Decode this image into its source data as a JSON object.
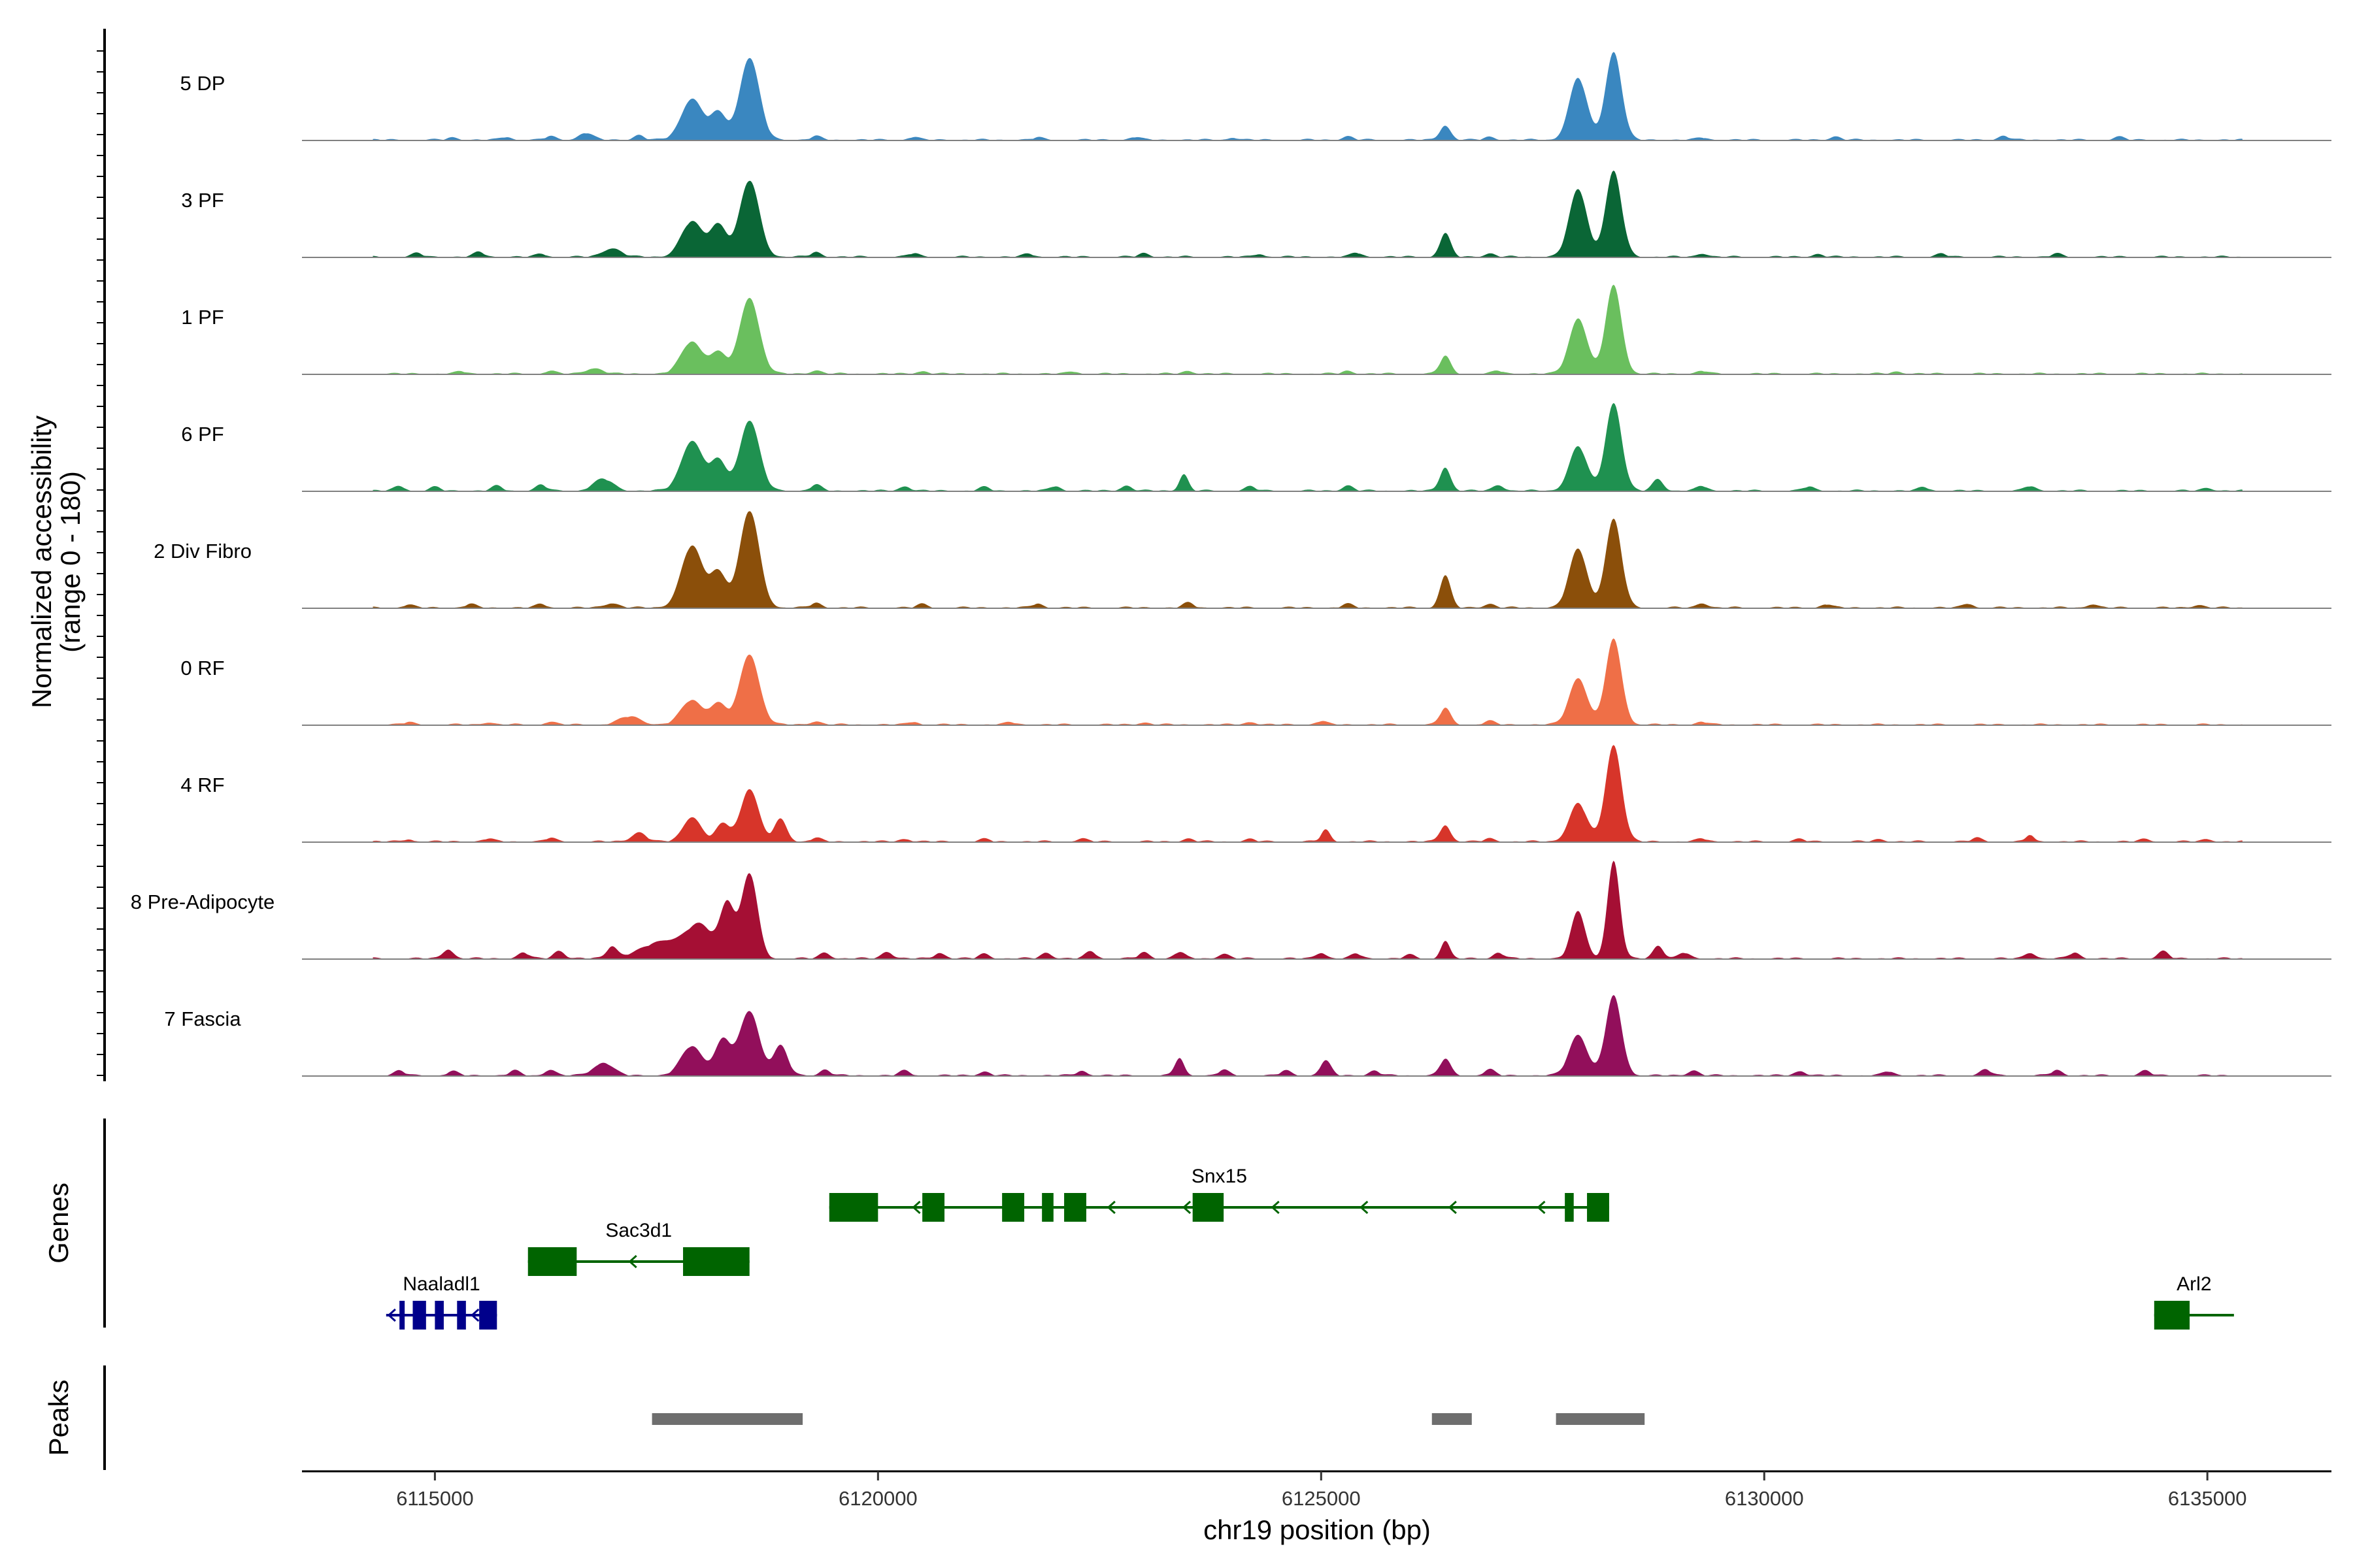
{
  "chart_data": {
    "type": "area",
    "title": "",
    "ylabel": "Normalized accessibility",
    "ylabel_range": "(range 0 - 180)",
    "ylim": [
      0,
      180
    ],
    "xlabel": "chr19 position (bp)",
    "xlim": [
      6113500,
      6136400
    ],
    "xticks": [
      6115000,
      6120000,
      6125000,
      6130000,
      6135000
    ],
    "xtick_labels": [
      "6115000",
      "6120000",
      "6125000",
      "6130000",
      "6135000"
    ],
    "tracks": [
      {
        "name": "5 DP",
        "color": "#3a87c0",
        "peaks": [
          [
            6116700,
            12,
            80
          ],
          [
            6117900,
            70,
            120
          ],
          [
            6118200,
            45,
            90
          ],
          [
            6118550,
            140,
            110
          ],
          [
            6126400,
            25,
            60
          ],
          [
            6127900,
            105,
            100
          ],
          [
            6128300,
            150,
            90
          ]
        ],
        "bumps": [
          [
            6115200,
            4
          ],
          [
            6115800,
            5
          ],
          [
            6116300,
            6
          ],
          [
            6117300,
            8
          ],
          [
            6119300,
            6
          ],
          [
            6120400,
            5
          ],
          [
            6121800,
            4
          ],
          [
            6122900,
            5
          ],
          [
            6124000,
            4
          ],
          [
            6125300,
            6
          ],
          [
            6126900,
            5
          ],
          [
            6129300,
            4
          ],
          [
            6130800,
            6
          ],
          [
            6132700,
            7
          ],
          [
            6134000,
            5
          ]
        ]
      },
      {
        "name": "3 PF",
        "color": "#0a6636",
        "peaks": [
          [
            6117000,
            15,
            100
          ],
          [
            6117900,
            60,
            120
          ],
          [
            6118200,
            55,
            90
          ],
          [
            6118550,
            130,
            110
          ],
          [
            6126400,
            40,
            60
          ],
          [
            6127900,
            115,
            100
          ],
          [
            6128300,
            145,
            90
          ]
        ],
        "bumps": [
          [
            6114800,
            6
          ],
          [
            6115500,
            8
          ],
          [
            6116200,
            5
          ],
          [
            6119300,
            8
          ],
          [
            6120400,
            6
          ],
          [
            6121700,
            5
          ],
          [
            6123000,
            6
          ],
          [
            6124300,
            5
          ],
          [
            6125400,
            7
          ],
          [
            6126900,
            6
          ],
          [
            6129300,
            6
          ],
          [
            6130600,
            5
          ],
          [
            6132000,
            5
          ],
          [
            6133300,
            5
          ]
        ]
      },
      {
        "name": "1 PF",
        "color": "#6abf5e",
        "peaks": [
          [
            6116800,
            10,
            90
          ],
          [
            6117900,
            55,
            120
          ],
          [
            6118200,
            35,
            90
          ],
          [
            6118550,
            130,
            110
          ],
          [
            6126400,
            30,
            60
          ],
          [
            6127900,
            95,
            100
          ],
          [
            6128300,
            150,
            90
          ]
        ],
        "bumps": [
          [
            6115300,
            4
          ],
          [
            6116300,
            5
          ],
          [
            6119300,
            6
          ],
          [
            6120500,
            5
          ],
          [
            6122200,
            4
          ],
          [
            6123500,
            5
          ],
          [
            6125300,
            5
          ],
          [
            6127000,
            5
          ],
          [
            6129300,
            5
          ],
          [
            6131500,
            4
          ]
        ]
      },
      {
        "name": "6 PF",
        "color": "#1f9150",
        "peaks": [
          [
            6116900,
            20,
            110
          ],
          [
            6117900,
            85,
            120
          ],
          [
            6118200,
            50,
            90
          ],
          [
            6118550,
            120,
            110
          ],
          [
            6123450,
            28,
            50
          ],
          [
            6126400,
            40,
            60
          ],
          [
            6127900,
            75,
            100
          ],
          [
            6128300,
            150,
            90
          ],
          [
            6128800,
            20,
            60
          ]
        ],
        "bumps": [
          [
            6114600,
            8
          ],
          [
            6115000,
            6
          ],
          [
            6115700,
            8
          ],
          [
            6116200,
            10
          ],
          [
            6119300,
            10
          ],
          [
            6120300,
            8
          ],
          [
            6121200,
            6
          ],
          [
            6122000,
            8
          ],
          [
            6122800,
            9
          ],
          [
            6124200,
            7
          ],
          [
            6125300,
            9
          ],
          [
            6127000,
            10
          ],
          [
            6129300,
            8
          ],
          [
            6130500,
            7
          ],
          [
            6131800,
            6
          ],
          [
            6133000,
            8
          ],
          [
            6135000,
            5
          ]
        ]
      },
      {
        "name": "2 Div Fibro",
        "color": "#8b4f0a",
        "peaks": [
          [
            6117000,
            8,
            80
          ],
          [
            6117900,
            105,
            120
          ],
          [
            6118200,
            60,
            90
          ],
          [
            6118550,
            165,
            110
          ],
          [
            6126400,
            55,
            60
          ],
          [
            6127900,
            100,
            100
          ],
          [
            6128300,
            150,
            90
          ]
        ],
        "bumps": [
          [
            6114700,
            5
          ],
          [
            6115400,
            6
          ],
          [
            6116200,
            6
          ],
          [
            6119300,
            8
          ],
          [
            6120500,
            6
          ],
          [
            6121800,
            7
          ],
          [
            6123500,
            8
          ],
          [
            6125300,
            6
          ],
          [
            6126900,
            7
          ],
          [
            6129300,
            8
          ],
          [
            6130700,
            6
          ],
          [
            6132300,
            7
          ],
          [
            6133700,
            6
          ],
          [
            6134900,
            5
          ]
        ]
      },
      {
        "name": "0 RF",
        "color": "#ef6f47",
        "peaks": [
          [
            6117200,
            14,
            120
          ],
          [
            6117900,
            42,
            120
          ],
          [
            6118200,
            35,
            90
          ],
          [
            6118550,
            120,
            110
          ],
          [
            6126400,
            28,
            60
          ],
          [
            6127900,
            80,
            100
          ],
          [
            6128300,
            145,
            90
          ],
          [
            6125000,
            6,
            60
          ]
        ],
        "bumps": [
          [
            6114700,
            4
          ],
          [
            6115600,
            4
          ],
          [
            6116300,
            5
          ],
          [
            6119300,
            6
          ],
          [
            6120400,
            5
          ],
          [
            6121500,
            4
          ],
          [
            6123000,
            4
          ],
          [
            6124200,
            5
          ],
          [
            6126900,
            6
          ],
          [
            6129300,
            5
          ]
        ]
      },
      {
        "name": "4 RF",
        "color": "#d7352a",
        "peaks": [
          [
            6117300,
            16,
            80
          ],
          [
            6117900,
            42,
            100
          ],
          [
            6118250,
            30,
            80
          ],
          [
            6118550,
            90,
            100
          ],
          [
            6118900,
            38,
            70
          ],
          [
            6125050,
            20,
            50
          ],
          [
            6126400,
            28,
            60
          ],
          [
            6127900,
            65,
            100
          ],
          [
            6128300,
            165,
            90
          ],
          [
            6133000,
            12,
            40
          ]
        ],
        "bumps": [
          [
            6114700,
            4
          ],
          [
            6115600,
            5
          ],
          [
            6116300,
            6
          ],
          [
            6119300,
            6
          ],
          [
            6120300,
            5
          ],
          [
            6121200,
            4
          ],
          [
            6122300,
            5
          ],
          [
            6123500,
            5
          ],
          [
            6124200,
            4
          ],
          [
            6126900,
            5
          ],
          [
            6129300,
            5
          ],
          [
            6130400,
            4
          ],
          [
            6131300,
            4
          ],
          [
            6132400,
            6
          ],
          [
            6134300,
            4
          ],
          [
            6135000,
            4
          ]
        ]
      },
      {
        "name": "8 Pre-Adipocyte",
        "color": "#a50f34",
        "peaks": [
          [
            6117600,
            30,
            250
          ],
          [
            6118000,
            50,
            150
          ],
          [
            6118550,
            145,
            90
          ],
          [
            6118300,
            90,
            80
          ],
          [
            6126400,
            30,
            50
          ],
          [
            6127900,
            80,
            80
          ],
          [
            6128300,
            165,
            70
          ],
          [
            6128800,
            22,
            60
          ]
        ],
        "bumps": [
          [
            6115150,
            16
          ],
          [
            6116000,
            10
          ],
          [
            6116400,
            14
          ],
          [
            6117000,
            20
          ],
          [
            6119400,
            10
          ],
          [
            6120100,
            12
          ],
          [
            6120700,
            10
          ],
          [
            6121200,
            8
          ],
          [
            6121900,
            10
          ],
          [
            6122400,
            12
          ],
          [
            6123000,
            10
          ],
          [
            6123400,
            11
          ],
          [
            6123900,
            8
          ],
          [
            6125000,
            10
          ],
          [
            6125400,
            8
          ],
          [
            6126000,
            6
          ],
          [
            6127000,
            10
          ],
          [
            6129100,
            10
          ],
          [
            6133000,
            10
          ],
          [
            6133500,
            10
          ],
          [
            6134500,
            12
          ]
        ]
      },
      {
        "name": "7 Fascia",
        "color": "#920f5b",
        "peaks": [
          [
            6116900,
            22,
            110
          ],
          [
            6117900,
            50,
            120
          ],
          [
            6118250,
            60,
            90
          ],
          [
            6118550,
            110,
            110
          ],
          [
            6118900,
            50,
            80
          ],
          [
            6123400,
            30,
            50
          ],
          [
            6125050,
            25,
            60
          ],
          [
            6126400,
            28,
            60
          ],
          [
            6127900,
            70,
            100
          ],
          [
            6128300,
            135,
            90
          ]
        ],
        "bumps": [
          [
            6114600,
            8
          ],
          [
            6115200,
            7
          ],
          [
            6115900,
            8
          ],
          [
            6116300,
            10
          ],
          [
            6119400,
            10
          ],
          [
            6120300,
            8
          ],
          [
            6121200,
            7
          ],
          [
            6122300,
            8
          ],
          [
            6123900,
            9
          ],
          [
            6124600,
            8
          ],
          [
            6125600,
            8
          ],
          [
            6126900,
            10
          ],
          [
            6129200,
            9
          ],
          [
            6130400,
            8
          ],
          [
            6131400,
            7
          ],
          [
            6132500,
            10
          ],
          [
            6133300,
            9
          ],
          [
            6134300,
            8
          ]
        ]
      }
    ],
    "genes_panel_label": "Genes",
    "peaks_panel_label": "Peaks",
    "genes": [
      {
        "name": "Snx15",
        "color": "#006400",
        "row": 0,
        "start": 6119450,
        "end": 6128250,
        "strand": "-",
        "exons": [
          [
            6119450,
            6120000
          ],
          [
            6120500,
            6120750
          ],
          [
            6121400,
            6121650
          ],
          [
            6121850,
            6121980
          ],
          [
            6122100,
            6122350
          ],
          [
            6123550,
            6123900
          ],
          [
            6127750,
            6127850
          ],
          [
            6128000,
            6128250
          ]
        ],
        "arrows": [
          6120400,
          6122600,
          6123450,
          6124450,
          6125450,
          6126450,
          6127450
        ]
      },
      {
        "name": "Sac3d1",
        "color": "#006400",
        "row": 1,
        "start": 6116050,
        "end": 6118550,
        "strand": "-",
        "exons": [
          [
            6116050,
            6116600
          ],
          [
            6117800,
            6118550
          ]
        ],
        "arrows": [
          6117200
        ]
      },
      {
        "name": "Naaladl1",
        "color": "#00008b",
        "row": 2,
        "start": 6114450,
        "end": 6115700,
        "strand": "-",
        "exons": [
          [
            6114600,
            6114650
          ],
          [
            6114750,
            6114900
          ],
          [
            6115000,
            6115100
          ],
          [
            6115250,
            6115350
          ],
          [
            6115500,
            6115700
          ]
        ],
        "arrows": [
          6114480,
          6115420
        ]
      },
      {
        "name": "Arl2",
        "color": "#006400",
        "row": 2,
        "start": 6134400,
        "end": 6135300,
        "strand": "+",
        "exons": [
          [
            6134400,
            6134800
          ]
        ],
        "arrows": []
      }
    ],
    "peak_regions": [
      [
        6117450,
        6119150
      ],
      [
        6126250,
        6126700
      ],
      [
        6127650,
        6128650
      ]
    ]
  }
}
